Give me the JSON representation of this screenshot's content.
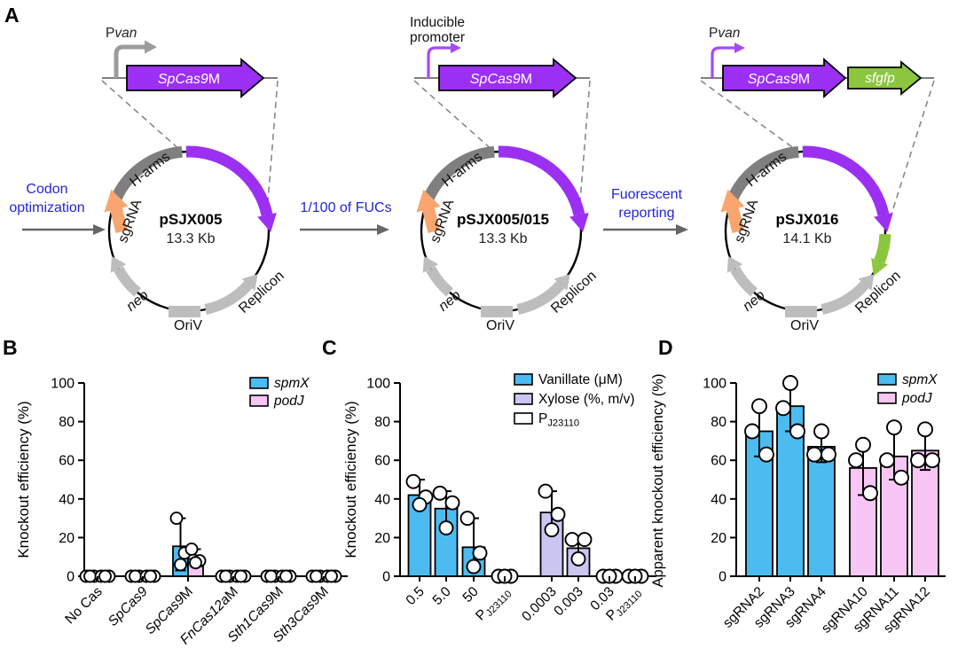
{
  "figure": {
    "letters": [
      "A",
      "B",
      "C",
      "D"
    ]
  },
  "panelA": {
    "steps": [
      {
        "label": "Codon\noptimization"
      },
      {
        "label": "1/100 of FUCs"
      },
      {
        "label": "Fuorescent\nreporting"
      }
    ],
    "common_labels": {
      "sgRNA": "sgRNA",
      "h_arms": "H-arms",
      "neo": "neo",
      "oriv": "OriV",
      "replicon": "Replicon"
    },
    "plasmids": [
      {
        "name": "pSJX005",
        "size": "13.3 Kb",
        "promoter": {
          "prefix": "P",
          "italic": "van"
        },
        "genes": [
          {
            "italic": "SpCas9",
            "roman": "M"
          }
        ]
      },
      {
        "name": "pSJX005/015",
        "size": "13.3 Kb",
        "promoter": {
          "line1": "Inducible",
          "line2": "promoter"
        },
        "genes": [
          {
            "italic": "SpCas9",
            "roman": "M"
          }
        ]
      },
      {
        "name": "pSJX016",
        "size": "14.1 Kb",
        "promoter": {
          "prefix": "P",
          "italic": "van"
        },
        "genes": [
          {
            "italic": "SpCas9",
            "roman": "M"
          },
          {
            "italic": "sfgfp",
            "roman": ""
          }
        ]
      }
    ],
    "colors": {
      "cas9_purple": "#9B30F2",
      "promoter_purple": "#A44BF7",
      "promoter_gray": "#9C9C9C",
      "sfgfp_green": "#8CC63F",
      "sgrna_orange": "#F9A56F",
      "h_arms_gray": "#7F7F7F",
      "element_gray": "#BDBDBD",
      "step_text_blue": "#2424DC"
    }
  },
  "chart_data": [
    {
      "id": "B",
      "type": "bar",
      "ylabel": "Knockout efficiency (%)",
      "ylim": [
        0,
        100
      ],
      "yticks": [
        0,
        20,
        40,
        60,
        80,
        100
      ],
      "legend": [
        {
          "color": "#4CBCF0",
          "label": [
            {
              "t": "spmX",
              "i": true
            }
          ]
        },
        {
          "color": "#F8C6F4",
          "label": [
            {
              "t": "podJ",
              "i": true
            }
          ]
        }
      ],
      "groups": [
        {
          "label": [
            {
              "t": "No Cas"
            }
          ],
          "bars": [
            {
              "color": "#4CBCF0",
              "value": 0,
              "err": null,
              "points": [
                0,
                0,
                0
              ]
            },
            {
              "color": "#F8C6F4",
              "value": 0,
              "err": null,
              "points": [
                0,
                0,
                0
              ]
            }
          ]
        },
        {
          "label": [
            {
              "t": "SpCas9",
              "i": true
            }
          ],
          "bars": [
            {
              "color": "#4CBCF0",
              "value": 0,
              "err": null,
              "points": [
                0,
                0,
                0
              ]
            },
            {
              "color": "#F8C6F4",
              "value": 0,
              "err": null,
              "points": [
                0,
                0,
                0
              ]
            }
          ]
        },
        {
          "label": [
            {
              "t": "SpCas9",
              "i": true
            },
            {
              "t": "M"
            }
          ],
          "bars": [
            {
              "color": "#4CBCF0",
              "value": 15.5,
              "err": [
                3,
                30
              ],
              "points": [
                30,
                12,
                6
              ]
            },
            {
              "color": "#F8C6F4",
              "value": 9,
              "err": [
                5,
                14
              ],
              "points": [
                14,
                8,
                7
              ]
            }
          ]
        },
        {
          "label": [
            {
              "t": "FnCas12a",
              "i": true
            },
            {
              "t": "M"
            }
          ],
          "bars": [
            {
              "color": "#4CBCF0",
              "value": 0,
              "err": null,
              "points": [
                0,
                0,
                0
              ]
            },
            {
              "color": "#F8C6F4",
              "value": 0,
              "err": null,
              "points": [
                0,
                0,
                0
              ]
            }
          ]
        },
        {
          "label": [
            {
              "t": "Sth1Cas9",
              "i": true
            },
            {
              "t": "M"
            }
          ],
          "bars": [
            {
              "color": "#4CBCF0",
              "value": 0,
              "err": null,
              "points": [
                0,
                0,
                0
              ]
            },
            {
              "color": "#F8C6F4",
              "value": 0,
              "err": null,
              "points": [
                0,
                0,
                0
              ]
            }
          ]
        },
        {
          "label": [
            {
              "t": "Sth3Cas9",
              "i": true
            },
            {
              "t": "M"
            }
          ],
          "bars": [
            {
              "color": "#4CBCF0",
              "value": 0,
              "err": null,
              "points": [
                0,
                0,
                0
              ]
            },
            {
              "color": "#F8C6F4",
              "value": 0,
              "err": null,
              "points": [
                0,
                0,
                0
              ]
            }
          ]
        }
      ]
    },
    {
      "id": "C",
      "type": "bar",
      "ylabel": "Knockout efficiency (%)",
      "ylim": [
        0,
        100
      ],
      "yticks": [
        0,
        20,
        40,
        60,
        80,
        100
      ],
      "legend": [
        {
          "color": "#4CBCF0",
          "label": [
            {
              "t": "Vanillate (μM)"
            }
          ]
        },
        {
          "color": "#C9C6F2",
          "label": [
            {
              "t": "Xylose (%, m/v)"
            }
          ]
        },
        {
          "color": "#FFFFFF",
          "label": [
            {
              "t": "P"
            },
            {
              "t": "J23110",
              "sub": true
            }
          ]
        }
      ],
      "groups": [
        {
          "label": [
            {
              "t": "0.5"
            }
          ],
          "bars": [
            {
              "color": "#4CBCF0",
              "value": 42,
              "err": [
                36,
                50
              ],
              "points": [
                49,
                41,
                37
              ]
            }
          ]
        },
        {
          "label": [
            {
              "t": "5.0"
            }
          ],
          "bars": [
            {
              "color": "#4CBCF0",
              "value": 35,
              "err": [
                25,
                44
              ],
              "points": [
                43,
                38,
                25
              ]
            }
          ]
        },
        {
          "label": [
            {
              "t": "50"
            }
          ],
          "bars": [
            {
              "color": "#4CBCF0",
              "value": 15,
              "err": [
                4,
                30
              ],
              "points": [
                30,
                12,
                5
              ]
            }
          ]
        },
        {
          "label": [
            {
              "t": "P"
            },
            {
              "t": "J23110",
              "sub": true
            }
          ],
          "bars": [
            {
              "color": "#FFFFFF",
              "value": 0,
              "err": null,
              "points": [
                0,
                0,
                0
              ]
            }
          ]
        },
        {
          "label": [
            {
              "t": "0.0003"
            }
          ],
          "bars": [
            {
              "color": "#C9C6F2",
              "value": 33,
              "err": [
                24,
                44
              ],
              "points": [
                44,
                32,
                24
              ]
            }
          ]
        },
        {
          "label": [
            {
              "t": "0.003"
            }
          ],
          "bars": [
            {
              "color": "#C9C6F2",
              "value": 14.5,
              "err": [
                9,
                20
              ],
              "points": [
                19,
                19,
                9
              ]
            }
          ]
        },
        {
          "label": [
            {
              "t": "0.03"
            }
          ],
          "bars": [
            {
              "color": "#C9C6F2",
              "value": 0,
              "err": null,
              "points": [
                0,
                0,
                0
              ]
            }
          ]
        },
        {
          "label": [
            {
              "t": "P"
            },
            {
              "t": "J23110",
              "sub": true
            }
          ],
          "bars": [
            {
              "color": "#FFFFFF",
              "value": 0,
              "err": null,
              "points": [
                0,
                0,
                0
              ]
            }
          ]
        }
      ]
    },
    {
      "id": "D",
      "type": "bar",
      "ylabel": "Apparent knockout efficiency (%)",
      "ylim": [
        0,
        100
      ],
      "yticks": [
        0,
        20,
        40,
        60,
        80,
        100
      ],
      "legend": [
        {
          "color": "#4CBCF0",
          "label": [
            {
              "t": "spmX",
              "i": true
            }
          ]
        },
        {
          "color": "#F8C6F4",
          "label": [
            {
              "t": "podJ",
              "i": true
            }
          ]
        }
      ],
      "groups": [
        {
          "label": [
            {
              "t": "sgRNA2"
            }
          ],
          "bars": [
            {
              "color": "#4CBCF0",
              "value": 75,
              "err": [
                62,
                88
              ],
              "points": [
                88,
                75,
                63
              ]
            }
          ]
        },
        {
          "label": [
            {
              "t": "sgRNA3"
            }
          ],
          "bars": [
            {
              "color": "#4CBCF0",
              "value": 88,
              "err": [
                75,
                100
              ],
              "points": [
                100,
                87,
                75
              ]
            }
          ]
        },
        {
          "label": [
            {
              "t": "sgRNA4"
            }
          ],
          "bars": [
            {
              "color": "#4CBCF0",
              "value": 67,
              "err": [
                59,
                75
              ],
              "points": [
                75,
                63,
                63
              ]
            }
          ]
        },
        {
          "label": [
            {
              "t": "sgRNA10"
            }
          ],
          "bars": [
            {
              "color": "#F8C6F4",
              "value": 56,
              "err": [
                42,
                69
              ],
              "points": [
                68,
                60,
                43
              ]
            }
          ]
        },
        {
          "label": [
            {
              "t": "sgRNA11"
            }
          ],
          "bars": [
            {
              "color": "#F8C6F4",
              "value": 62,
              "err": [
                50,
                77
              ],
              "points": [
                77,
                60,
                51
              ]
            }
          ]
        },
        {
          "label": [
            {
              "t": "sgRNA12"
            }
          ],
          "bars": [
            {
              "color": "#F8C6F4",
              "value": 65,
              "err": [
                55,
                76
              ],
              "points": [
                76,
                60,
                60
              ]
            }
          ]
        }
      ]
    }
  ]
}
